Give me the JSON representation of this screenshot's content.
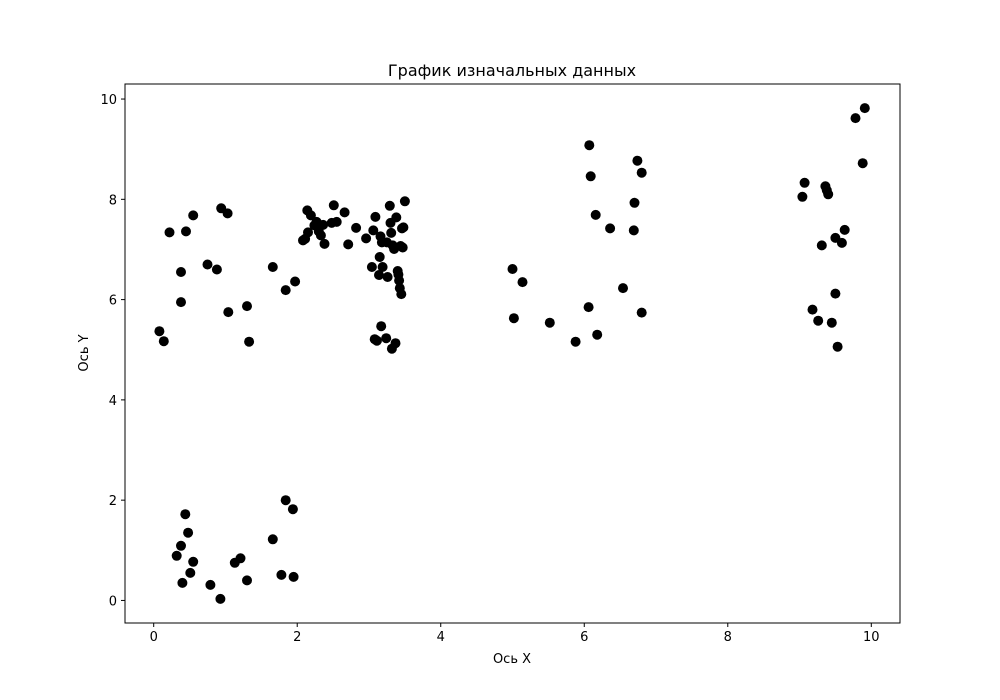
{
  "chart_data": {
    "type": "scatter",
    "title": "График изначальных данных",
    "xlabel": "Ось X",
    "ylabel": "Ось Y",
    "xlim": [
      -0.4,
      10.4
    ],
    "ylim": [
      -0.45,
      10.3
    ],
    "grid": false,
    "marker_color": "#000000",
    "xticks": [
      0,
      2,
      4,
      6,
      8,
      10
    ],
    "yticks": [
      0,
      2,
      4,
      6,
      8,
      10
    ],
    "xtick_labels": [
      "0",
      "2",
      "4",
      "6",
      "8",
      "10"
    ],
    "ytick_labels": [
      "0",
      "2",
      "4",
      "6",
      "8",
      "10"
    ],
    "series": [
      {
        "points": [
          [
            0.08,
            5.37
          ],
          [
            0.14,
            5.17
          ],
          [
            0.22,
            7.34
          ],
          [
            0.38,
            6.55
          ],
          [
            0.38,
            5.95
          ],
          [
            0.45,
            7.36
          ],
          [
            0.55,
            7.68
          ],
          [
            0.75,
            6.7
          ],
          [
            0.88,
            6.6
          ],
          [
            0.94,
            7.82
          ],
          [
            1.03,
            7.72
          ],
          [
            1.04,
            5.75
          ],
          [
            1.3,
            5.87
          ],
          [
            1.33,
            5.16
          ],
          [
            1.66,
            6.65
          ],
          [
            1.84,
            6.19
          ],
          [
            1.97,
            6.36
          ],
          [
            2.08,
            7.18
          ],
          [
            2.11,
            7.21
          ],
          [
            2.14,
            7.78
          ],
          [
            2.15,
            7.34
          ],
          [
            2.19,
            7.68
          ],
          [
            2.24,
            7.48
          ],
          [
            2.27,
            7.55
          ],
          [
            2.3,
            7.36
          ],
          [
            2.33,
            7.28
          ],
          [
            2.36,
            7.49
          ],
          [
            2.38,
            7.11
          ],
          [
            2.48,
            7.53
          ],
          [
            2.51,
            7.88
          ],
          [
            2.55,
            7.55
          ],
          [
            2.66,
            7.74
          ],
          [
            2.71,
            7.1
          ],
          [
            2.82,
            7.43
          ],
          [
            2.96,
            7.22
          ],
          [
            3.04,
            6.65
          ],
          [
            3.06,
            7.38
          ],
          [
            3.08,
            5.21
          ],
          [
            3.09,
            7.65
          ],
          [
            3.11,
            5.18
          ],
          [
            3.14,
            6.49
          ],
          [
            3.15,
            6.85
          ],
          [
            3.16,
            7.26
          ],
          [
            3.17,
            5.47
          ],
          [
            3.18,
            7.14
          ],
          [
            3.19,
            6.65
          ],
          [
            3.24,
            5.23
          ],
          [
            3.25,
            7.14
          ],
          [
            3.26,
            6.45
          ],
          [
            3.29,
            7.87
          ],
          [
            3.3,
            7.53
          ],
          [
            3.31,
            7.33
          ],
          [
            3.32,
            5.02
          ],
          [
            3.33,
            7.08
          ],
          [
            3.35,
            7.01
          ],
          [
            3.37,
            5.13
          ],
          [
            3.38,
            7.64
          ],
          [
            3.4,
            6.57
          ],
          [
            3.41,
            6.5
          ],
          [
            3.42,
            6.38
          ],
          [
            3.43,
            6.23
          ],
          [
            3.44,
            7.07
          ],
          [
            3.45,
            6.11
          ],
          [
            3.46,
            7.42
          ],
          [
            3.47,
            7.04
          ],
          [
            3.48,
            7.44
          ],
          [
            3.5,
            7.96
          ],
          [
            0.32,
            0.89
          ],
          [
            0.38,
            1.09
          ],
          [
            0.4,
            0.35
          ],
          [
            0.44,
            1.72
          ],
          [
            0.48,
            1.35
          ],
          [
            0.51,
            0.55
          ],
          [
            0.55,
            0.77
          ],
          [
            0.79,
            0.31
          ],
          [
            0.93,
            0.03
          ],
          [
            1.13,
            0.75
          ],
          [
            1.21,
            0.84
          ],
          [
            1.3,
            0.4
          ],
          [
            1.66,
            1.22
          ],
          [
            1.78,
            0.51
          ],
          [
            1.84,
            2.0
          ],
          [
            1.95,
            0.47
          ],
          [
            1.94,
            1.82
          ],
          [
            5.0,
            6.61
          ],
          [
            5.02,
            5.63
          ],
          [
            5.14,
            6.35
          ],
          [
            5.52,
            5.54
          ],
          [
            5.88,
            5.16
          ],
          [
            6.06,
            5.85
          ],
          [
            6.07,
            9.08
          ],
          [
            6.09,
            8.46
          ],
          [
            6.16,
            7.69
          ],
          [
            6.18,
            5.3
          ],
          [
            6.36,
            7.42
          ],
          [
            6.54,
            6.23
          ],
          [
            6.69,
            7.38
          ],
          [
            6.7,
            7.93
          ],
          [
            6.74,
            8.77
          ],
          [
            6.8,
            8.53
          ],
          [
            6.8,
            5.74
          ],
          [
            9.04,
            8.05
          ],
          [
            9.07,
            8.33
          ],
          [
            9.18,
            5.8
          ],
          [
            9.26,
            5.58
          ],
          [
            9.31,
            7.08
          ],
          [
            9.36,
            8.26
          ],
          [
            9.38,
            8.18
          ],
          [
            9.4,
            8.1
          ],
          [
            9.45,
            5.54
          ],
          [
            9.5,
            6.12
          ],
          [
            9.5,
            7.23
          ],
          [
            9.53,
            5.06
          ],
          [
            9.59,
            7.13
          ],
          [
            9.63,
            7.39
          ],
          [
            9.78,
            9.62
          ],
          [
            9.88,
            8.72
          ],
          [
            9.91,
            9.82
          ]
        ]
      }
    ]
  }
}
